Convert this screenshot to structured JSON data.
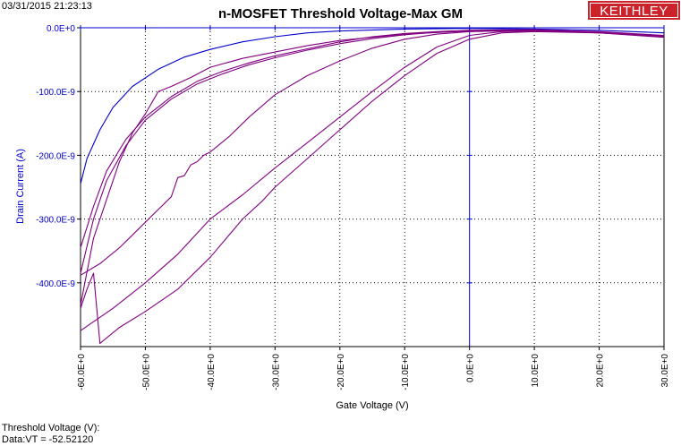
{
  "header": {
    "timestamp": "03/31/2015 21:23:13",
    "title": "n-MOSFET Threshold Voltage-Max GM",
    "logo": "KEITHLEY"
  },
  "footer": {
    "line1": "Threshold Voltage (V):",
    "line2": "Data:VT = -52.52120"
  },
  "chart_data": {
    "type": "line",
    "title": "n-MOSFET Threshold Voltage-Max GM",
    "xlabel": "Gate Voltage (V)",
    "ylabel": "Drain Current (A)",
    "xlim": [
      -60,
      30
    ],
    "ylim": [
      -5e-07,
      0
    ],
    "x_ticks": [
      -60,
      -50,
      -40,
      -30,
      -20,
      -10,
      0,
      10,
      20,
      30
    ],
    "x_tick_labels": [
      "-60.0E+0",
      "-50.0E+0",
      "-40.0E+0",
      "-30.0E+0",
      "-20.0E+0",
      "-10.0E+0",
      "0.0E+0",
      "10.0E+0",
      "20.0E+0",
      "30.0E+0"
    ],
    "y_ticks": [
      0,
      -1e-07,
      -2e-07,
      -3e-07,
      -4e-07
    ],
    "y_tick_labels": [
      "0.0E+0",
      "-100.0E-9",
      "-200.0E-9",
      "-300.0E-9",
      "-400.0E-9"
    ],
    "grid": true,
    "colors": {
      "axis": "#0000cc",
      "series_blue": "#0000cc",
      "series_purple": "#800080"
    },
    "series": [
      {
        "color": "#0000cc",
        "points": [
          [
            -60,
            -2.45e-07
          ],
          [
            -59,
            -2.05e-07
          ],
          [
            -57,
            -1.6e-07
          ],
          [
            -55,
            -1.25e-07
          ],
          [
            -52,
            -9.2e-08
          ],
          [
            -48,
            -6.5e-08
          ],
          [
            -44,
            -4.6e-08
          ],
          [
            -40,
            -3.4e-08
          ],
          [
            -35,
            -2.2e-08
          ],
          [
            -30,
            -1.4e-08
          ],
          [
            -25,
            -8e-09
          ],
          [
            -20,
            -5e-09
          ],
          [
            -10,
            -2e-09
          ],
          [
            0,
            -1e-09
          ],
          [
            10,
            -2e-09
          ],
          [
            20,
            -4e-09
          ],
          [
            30,
            -8e-09
          ]
        ]
      },
      {
        "color": "#800080",
        "points": [
          [
            -60,
            -3.45e-07
          ],
          [
            -58,
            -2.8e-07
          ],
          [
            -56,
            -2.25e-07
          ],
          [
            -53,
            -1.75e-07
          ],
          [
            -50,
            -1.4e-07
          ],
          [
            -46,
            -1.08e-07
          ],
          [
            -42,
            -8.4e-08
          ],
          [
            -38,
            -6.8e-08
          ],
          [
            -34,
            -5.5e-08
          ],
          [
            -30,
            -4.4e-08
          ],
          [
            -25,
            -3.3e-08
          ],
          [
            -20,
            -2.2e-08
          ],
          [
            -15,
            -1.4e-08
          ],
          [
            -10,
            -9e-09
          ],
          [
            -5,
            -6e-09
          ],
          [
            0,
            -4e-09
          ],
          [
            10,
            -3e-09
          ],
          [
            20,
            -6e-09
          ],
          [
            30,
            -1.2e-08
          ]
        ]
      },
      {
        "color": "#800080",
        "points": [
          [
            -60,
            -3.85e-07
          ],
          [
            -58,
            -3e-07
          ],
          [
            -56,
            -2.4e-07
          ],
          [
            -53,
            -1.85e-07
          ],
          [
            -50,
            -1.45e-07
          ],
          [
            -46,
            -1.12e-07
          ],
          [
            -42,
            -8.8e-08
          ],
          [
            -38,
            -7.2e-08
          ],
          [
            -34,
            -5.8e-08
          ],
          [
            -30,
            -4.7e-08
          ],
          [
            -25,
            -3.5e-08
          ],
          [
            -20,
            -2.5e-08
          ],
          [
            -15,
            -1.7e-08
          ],
          [
            -10,
            -1.1e-08
          ],
          [
            -5,
            -7e-09
          ],
          [
            0,
            -5e-09
          ],
          [
            10,
            -4e-09
          ],
          [
            20,
            -7e-09
          ],
          [
            30,
            -1.4e-08
          ]
        ]
      },
      {
        "color": "#800080",
        "points": [
          [
            -60,
            -4.35e-07
          ],
          [
            -58,
            -3.3e-07
          ],
          [
            -56,
            -2.7e-07
          ],
          [
            -54,
            -2.1e-07
          ],
          [
            -52,
            -1.65e-07
          ],
          [
            -50,
            -1.35e-07
          ],
          [
            -48,
            -1e-07
          ],
          [
            -46,
            -9.2e-08
          ],
          [
            -43,
            -7.8e-08
          ],
          [
            -40,
            -6.2e-08
          ],
          [
            -35,
            -4.8e-08
          ],
          [
            -30,
            -3.8e-08
          ],
          [
            -25,
            -2.8e-08
          ],
          [
            -20,
            -2e-08
          ],
          [
            -10,
            -1e-08
          ],
          [
            0,
            -5e-09
          ],
          [
            10,
            -4e-09
          ],
          [
            20,
            -8e-09
          ],
          [
            30,
            -1.5e-08
          ]
        ]
      },
      {
        "color": "#800080",
        "points": [
          [
            -60,
            -3.88e-07
          ],
          [
            -57,
            -3.7e-07
          ],
          [
            -54,
            -3.45e-07
          ],
          [
            -51,
            -3.15e-07
          ],
          [
            -48,
            -2.85e-07
          ],
          [
            -46,
            -2.65e-07
          ],
          [
            -45,
            -2.35e-07
          ],
          [
            -44,
            -2.32e-07
          ],
          [
            -43,
            -2.15e-07
          ],
          [
            -42,
            -2.1e-07
          ],
          [
            -41,
            -2e-07
          ],
          [
            -40,
            -1.95e-07
          ],
          [
            -37,
            -1.7e-07
          ],
          [
            -34,
            -1.4e-07
          ],
          [
            -30,
            -1.05e-07
          ],
          [
            -25,
            -7.5e-08
          ],
          [
            -20,
            -5.2e-08
          ],
          [
            -15,
            -3.2e-08
          ],
          [
            -10,
            -1.8e-08
          ],
          [
            -5,
            -1e-08
          ],
          [
            0,
            -6e-09
          ],
          [
            10,
            -4e-09
          ],
          [
            20,
            -7e-09
          ],
          [
            30,
            -1.3e-08
          ]
        ]
      },
      {
        "color": "#800080",
        "points": [
          [
            -60,
            -4.4e-07
          ],
          [
            -59,
            -4.1e-07
          ],
          [
            -58,
            -3.85e-07
          ],
          [
            -57,
            -4.95e-07
          ],
          [
            -54,
            -4.7e-07
          ],
          [
            -50,
            -4.45e-07
          ],
          [
            -45,
            -4.1e-07
          ],
          [
            -40,
            -3.6e-07
          ],
          [
            -35,
            -3e-07
          ],
          [
            -32,
            -2.72e-07
          ],
          [
            -30,
            -2.5e-07
          ],
          [
            -25,
            -2.05e-07
          ],
          [
            -20,
            -1.6e-07
          ],
          [
            -15,
            -1.15e-07
          ],
          [
            -10,
            -7.5e-08
          ],
          [
            -5,
            -4e-08
          ],
          [
            0,
            -1.8e-08
          ],
          [
            5,
            -8e-09
          ],
          [
            10,
            -6e-09
          ],
          [
            20,
            -8e-09
          ],
          [
            30,
            -1.3e-08
          ]
        ]
      },
      {
        "color": "#800080",
        "points": [
          [
            -60,
            -4.75e-07
          ],
          [
            -55,
            -4.4e-07
          ],
          [
            -50,
            -4e-07
          ],
          [
            -45,
            -3.55e-07
          ],
          [
            -40,
            -3e-07
          ],
          [
            -35,
            -2.62e-07
          ],
          [
            -30,
            -2.2e-07
          ],
          [
            -25,
            -1.8e-07
          ],
          [
            -20,
            -1.4e-07
          ],
          [
            -15,
            -1e-07
          ],
          [
            -10,
            -6.2e-08
          ],
          [
            -5,
            -3e-08
          ],
          [
            0,
            -1.2e-08
          ],
          [
            5,
            -6e-09
          ],
          [
            10,
            -5e-09
          ],
          [
            20,
            -8e-09
          ],
          [
            30,
            -1.4e-08
          ]
        ]
      }
    ]
  }
}
